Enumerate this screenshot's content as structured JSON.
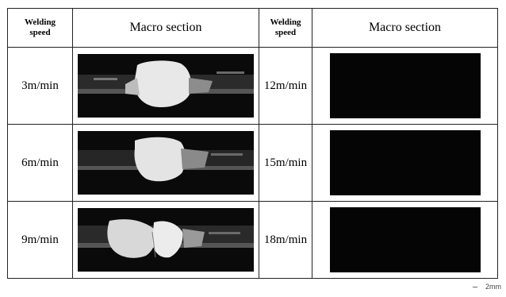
{
  "table": {
    "header": {
      "speed_label_line1": "Welding",
      "speed_label_line2": "speed",
      "macro_label": "Macro section"
    },
    "rows": [
      {
        "left_speed": "3m/min",
        "right_speed": "12m/min"
      },
      {
        "left_speed": "6m/min",
        "right_speed": "15m/min"
      },
      {
        "left_speed": "9m/min",
        "right_speed": "18m/min"
      }
    ]
  },
  "scale_bar": {
    "label": "2mm"
  }
}
